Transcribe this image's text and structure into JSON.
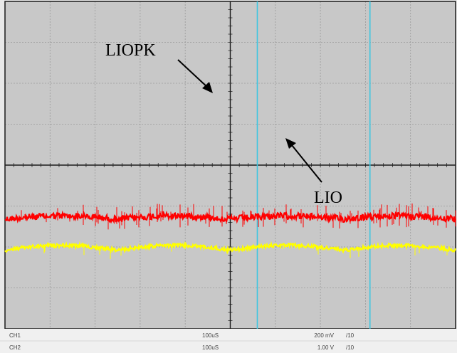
{
  "chart_data": {
    "type": "line",
    "grid": true,
    "divisions": {
      "x": 10,
      "y": 8
    },
    "annotations": [
      {
        "label": "LIOPK",
        "points_to": "red trace"
      },
      {
        "label": "LIO",
        "points_to": "yellow trace"
      }
    ],
    "series": [
      {
        "name": "LIOPK",
        "color": "#ff0000",
        "level_div": 2.72,
        "noise": "high",
        "ripple_div": 0.08
      },
      {
        "name": "LIO",
        "color": "#ffff00",
        "level_div": 1.98,
        "noise": "low",
        "ripple_div": 0.12
      }
    ],
    "cursors": [
      {
        "x_div": 5.6
      },
      {
        "x_div": 8.1
      }
    ],
    "channels": [
      {
        "name": "CH1",
        "timebase": "100uS",
        "scale": "200 mV",
        "probe": "/10"
      },
      {
        "name": "CH2",
        "timebase": "100uS",
        "scale": "1.00 V",
        "probe": "/10"
      }
    ]
  },
  "colors": {
    "screen": "#c8c8c8",
    "grid": "#9a9a9a",
    "axis": "#1a1a1a",
    "cursor": "#3ec6e0",
    "liopk": "#ff0000",
    "lio": "#ffff00"
  }
}
